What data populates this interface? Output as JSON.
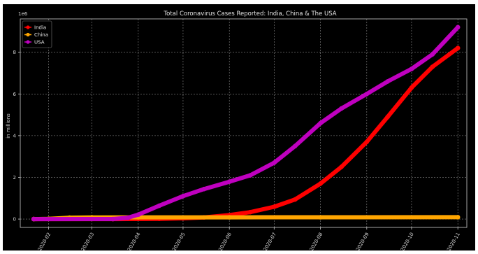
{
  "chart_data": {
    "type": "line",
    "title": "Total Coronavirus Cases Reported: India, China & The USA",
    "ylabel": "in millions",
    "xlabel": "",
    "y_offset_label": "1e6",
    "x_start": "2020-01-22",
    "x_end": "2020-11-01",
    "x_ticks": [
      "2020-02",
      "2020-03",
      "2020-04",
      "2020-05",
      "2020-06",
      "2020-07",
      "2020-08",
      "2020-09",
      "2020-10",
      "2020-11"
    ],
    "y_ticks": [
      "0",
      "2",
      "4",
      "6",
      "8"
    ],
    "ylim": [
      -0.4,
      9.6
    ],
    "grid": true,
    "legend_position": "top-left",
    "series": [
      {
        "name": "India",
        "color": "#ff0000",
        "points": [
          [
            "2020-01-22",
            0
          ],
          [
            "2020-03-15",
            0
          ],
          [
            "2020-04-15",
            0.012
          ],
          [
            "2020-05-01",
            0.035
          ],
          [
            "2020-05-15",
            0.08
          ],
          [
            "2020-06-01",
            0.19
          ],
          [
            "2020-06-15",
            0.33
          ],
          [
            "2020-07-01",
            0.59
          ],
          [
            "2020-07-15",
            0.94
          ],
          [
            "2020-08-01",
            1.7
          ],
          [
            "2020-08-15",
            2.5
          ],
          [
            "2020-09-01",
            3.7
          ],
          [
            "2020-09-15",
            4.9
          ],
          [
            "2020-10-01",
            6.3
          ],
          [
            "2020-10-15",
            7.3
          ],
          [
            "2020-11-01",
            8.2
          ]
        ]
      },
      {
        "name": "China",
        "color": "#ffa500",
        "points": [
          [
            "2020-01-22",
            0
          ],
          [
            "2020-02-01",
            0.012
          ],
          [
            "2020-02-15",
            0.066
          ],
          [
            "2020-03-01",
            0.08
          ],
          [
            "2020-04-01",
            0.082
          ],
          [
            "2020-06-01",
            0.084
          ],
          [
            "2020-08-01",
            0.088
          ],
          [
            "2020-11-01",
            0.091
          ]
        ]
      },
      {
        "name": "USA",
        "color": "#bf00bf",
        "points": [
          [
            "2020-01-22",
            0
          ],
          [
            "2020-03-15",
            0.003
          ],
          [
            "2020-03-25",
            0.06
          ],
          [
            "2020-04-01",
            0.21
          ],
          [
            "2020-04-15",
            0.64
          ],
          [
            "2020-05-01",
            1.1
          ],
          [
            "2020-05-15",
            1.44
          ],
          [
            "2020-06-01",
            1.79
          ],
          [
            "2020-06-15",
            2.1
          ],
          [
            "2020-07-01",
            2.7
          ],
          [
            "2020-07-15",
            3.5
          ],
          [
            "2020-08-01",
            4.6
          ],
          [
            "2020-08-15",
            5.3
          ],
          [
            "2020-09-01",
            6.0
          ],
          [
            "2020-09-15",
            6.6
          ],
          [
            "2020-10-01",
            7.2
          ],
          [
            "2020-10-15",
            7.9
          ],
          [
            "2020-11-01",
            9.2
          ]
        ]
      }
    ]
  }
}
